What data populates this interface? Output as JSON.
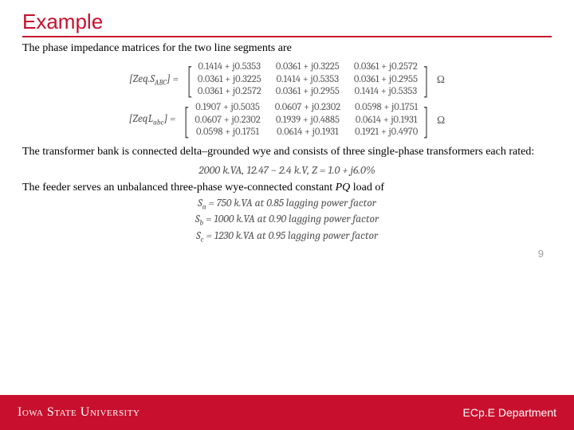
{
  "title": {
    "text": "Example",
    "fontsize": 26,
    "color": "#c8102e",
    "underline_color": "#c8102e"
  },
  "intro": {
    "text": "The phase impedance matrices for the two line segments are",
    "fontsize": 14
  },
  "matrices": [
    {
      "label_html": "[<i>Zeq</i>.<i>S</i><span class='sub'>ABC</span>] =",
      "unit": "Ω",
      "rows": [
        [
          "0.1414 + j0.5353",
          "0.0361 + j0.3225",
          "0.0361 + j0.2572"
        ],
        [
          "0.0361 + j0.3225",
          "0.1414 + j0.5353",
          "0.0361 + j0.2955"
        ],
        [
          "0.0361 + j0.2572",
          "0.0361 + j0.2955",
          "0.1414 + j0.5353"
        ]
      ]
    },
    {
      "label_html": "[<i>Zeq</i>L<span class='sub'>abc</span>] =",
      "unit": "Ω",
      "rows": [
        [
          "0.1907 + j0.5035",
          "0.0607 + j0.2302",
          "0.0598 + j0.1751"
        ],
        [
          "0.0607 + j0.2302",
          "0.1939 + j0.4885",
          "0.0614 + j0.1931"
        ],
        [
          "0.0598 + j0.1751",
          "0.0614 + j0.1931",
          "0.1921 + j0.4970"
        ]
      ]
    }
  ],
  "para2": {
    "text": "The transformer bank is connected delta–grounded wye and consists of three single-phase transformers each rated:",
    "fontsize": 14
  },
  "rating_line": {
    "text": "2000 k.VA, 12.47 − 2.4 k.V, Z = 1.0 + j6.0%",
    "fontsize": 14
  },
  "para3": {
    "text": "The feeder serves an unbalanced three-phase wye-connected constant PQ load of",
    "fontsize": 14,
    "pq_italic": true
  },
  "loads": [
    {
      "sub": "a",
      "text": "= 750 k.VA at 0.85 lagging power factor"
    },
    {
      "sub": "b",
      "text": "= 1000 k.VA at 0.90 lagging power factor"
    },
    {
      "sub": "c",
      "text": "= 1230 k.VA at 0.95 lagging power factor"
    }
  ],
  "page_number": "9",
  "footer": {
    "background": "#c8102e",
    "logo_text": "Iowa State University",
    "dept_text": "ECp.E Department",
    "text_color": "#ffffff"
  }
}
